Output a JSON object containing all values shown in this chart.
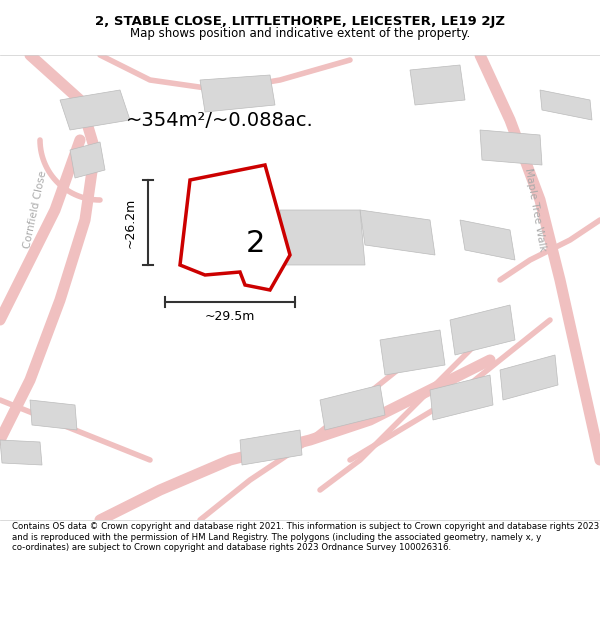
{
  "title_line1": "2, STABLE CLOSE, LITTLETHORPE, LEICESTER, LE19 2JZ",
  "title_line2": "Map shows position and indicative extent of the property.",
  "area_label": "~354m²/~0.088ac.",
  "plot_number": "2",
  "width_label": "~29.5m",
  "height_label": "~26.2m",
  "footer_text": "Contains OS data © Crown copyright and database right 2021. This information is subject to Crown copyright and database rights 2023 and is reproduced with the permission of HM Land Registry. The polygons (including the associated geometry, namely x, y co-ordinates) are subject to Crown copyright and database rights 2023 Ordnance Survey 100026316.",
  "background_color": "#ffffff",
  "map_bg_color": "#f5f5f5",
  "road_color": "#f0c0c0",
  "building_color": "#d8d8d8",
  "plot_outline_color": "#cc0000",
  "plot_fill_color": "#ffffff",
  "dim_line_color": "#333333",
  "street_text_color": "#aaaaaa",
  "figsize": [
    6.0,
    6.25
  ],
  "dpi": 100
}
